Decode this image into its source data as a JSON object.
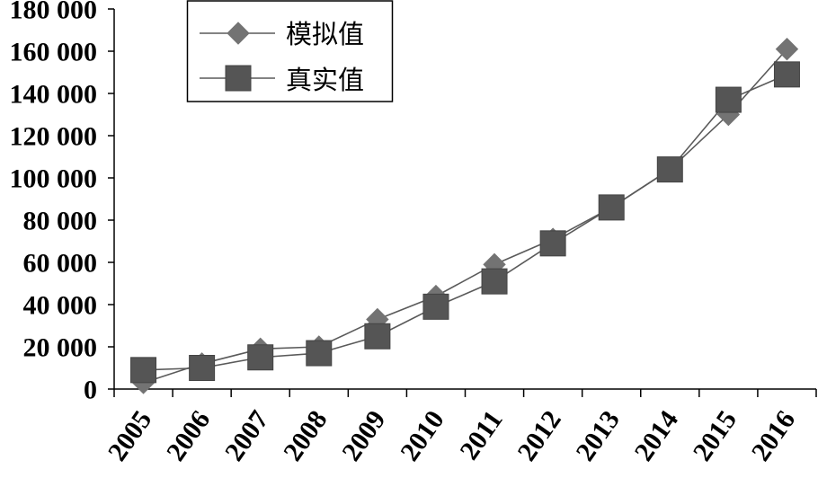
{
  "chart_data": {
    "type": "line",
    "categories": [
      "2005",
      "2006",
      "2007",
      "2008",
      "2009",
      "2010",
      "2011",
      "2012",
      "2013",
      "2014",
      "2015",
      "2016"
    ],
    "series": [
      {
        "name": "模拟值",
        "marker": "diamond",
        "color": "#737373",
        "line_color": "#5a5a5a",
        "values": [
          3000,
          12000,
          19000,
          20000,
          33000,
          44000,
          59000,
          71000,
          86000,
          104000,
          130000,
          161000
        ]
      },
      {
        "name": "真实值",
        "marker": "square",
        "color": "#555555",
        "line_color": "#5a5a5a",
        "values": [
          9000,
          10000,
          15000,
          17000,
          25000,
          39000,
          51000,
          69000,
          86000,
          104000,
          137000,
          149000
        ]
      }
    ],
    "ylim": [
      0,
      180000
    ],
    "y_ticks": [
      {
        "value": 0,
        "label": "0"
      },
      {
        "value": 20000,
        "label": "20 000"
      },
      {
        "value": 40000,
        "label": "40 000"
      },
      {
        "value": 60000,
        "label": "60 000"
      },
      {
        "value": 80000,
        "label": "80 000"
      },
      {
        "value": 100000,
        "label": "100 000"
      },
      {
        "value": 120000,
        "label": "120 000"
      },
      {
        "value": 140000,
        "label": "140 000"
      },
      {
        "value": 160000,
        "label": "160 000"
      },
      {
        "value": 180000,
        "label": "180 000"
      }
    ],
    "grid": false,
    "legend": "top-left",
    "axis_color": "#000000"
  }
}
